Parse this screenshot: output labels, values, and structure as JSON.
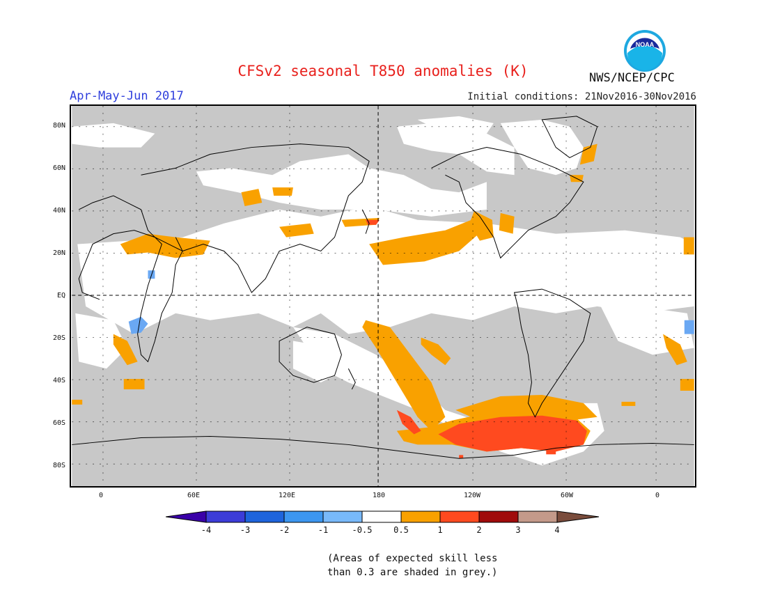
{
  "header": {
    "title": "CFSv2 seasonal T850 anomalies (K)",
    "period": "Apr-May-Jun 2017",
    "initial_conditions": "Initial conditions: 21Nov2016-30Nov2016",
    "agency": "NWS/NCEP/CPC",
    "logo_text": "NOAA"
  },
  "map": {
    "lat_labels": [
      "80N",
      "60N",
      "40N",
      "20N",
      "EQ",
      "20S",
      "40S",
      "60S",
      "80S"
    ],
    "lon_labels": [
      "0",
      "60E",
      "120E",
      "180",
      "120W",
      "60W",
      "0"
    ],
    "colors": {
      "skill_grey": "#c8c8c8",
      "orange": "#f9a100",
      "red_orange": "#ff4a1f",
      "light_blue": "#6aa8f3",
      "white": "#ffffff"
    }
  },
  "colorbar": {
    "labels": [
      "-4",
      "-3",
      "-2",
      "-1",
      "-0.5",
      "0.5",
      "1",
      "2",
      "3",
      "4"
    ],
    "colors": [
      "#3a00a8",
      "#3c3cd8",
      "#1e64dc",
      "#3c96f0",
      "#78b9fa",
      "#ffffff",
      "#f9a100",
      "#ff4a1f",
      "#a00b0b",
      "#c49a8a",
      "#7a4c3c"
    ]
  },
  "footnote": {
    "line1": "(Areas of expected skill less",
    "line2": "than 0.3 are shaded in grey.)"
  }
}
